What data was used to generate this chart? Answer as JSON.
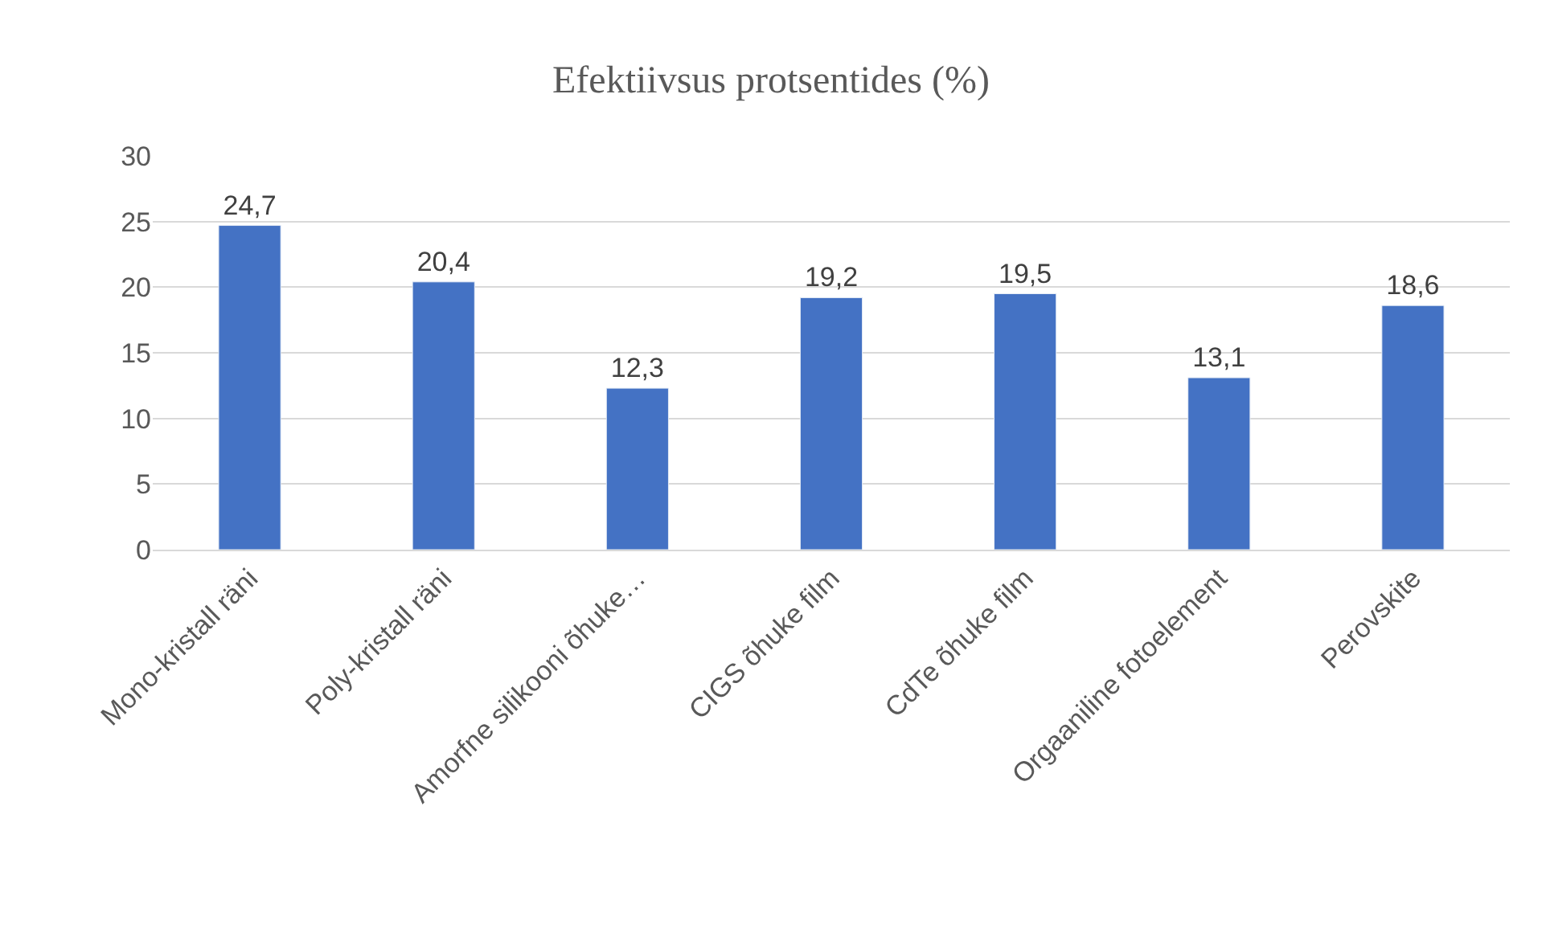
{
  "chart_data": {
    "type": "bar",
    "title": "Efektiivsus protsentides (%)",
    "categories": [
      "Mono-kristall räni",
      "Poly-kristall räni",
      "Amorfne silikooni õhuke…",
      "CIGS õhuke film",
      "CdTe õhuke film",
      "Orgaaniline fotoelement",
      "Perovskite"
    ],
    "values": [
      24.7,
      20.4,
      12.3,
      19.2,
      19.5,
      13.1,
      18.6
    ],
    "value_labels": [
      "24,7",
      "20,4",
      "12,3",
      "19,2",
      "19,5",
      "13,1",
      "18,6"
    ],
    "color": "#4472c4",
    "ylim": [
      0,
      30
    ],
    "yticks": [
      0,
      5,
      10,
      15,
      20,
      25,
      30
    ],
    "grid": "y",
    "legend": false
  }
}
